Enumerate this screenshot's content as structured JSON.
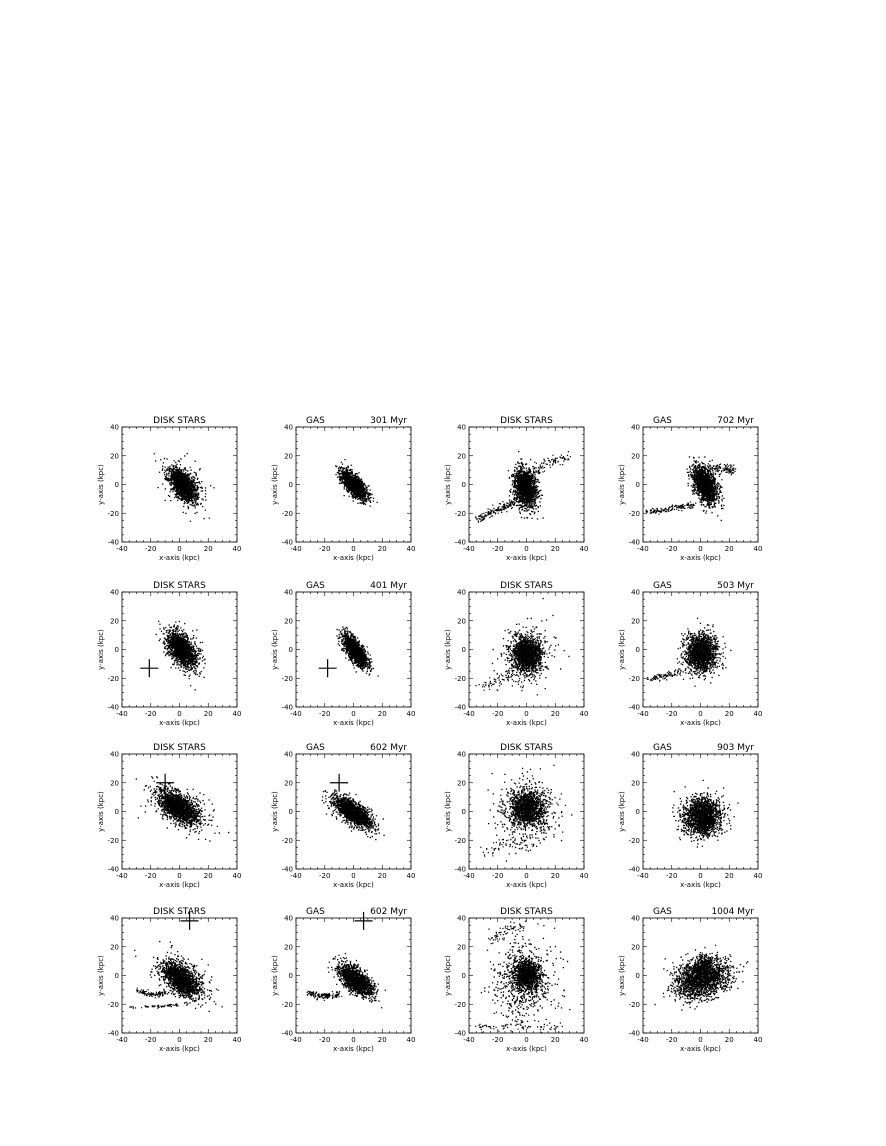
{
  "figure": {
    "background": "#ffffff",
    "ink": "#000000"
  },
  "chart_data": [
    {
      "type": "scatter",
      "xlabel": "x-axis (kpc)",
      "ylabel": "y-axis (kpc)",
      "xlim": [
        -40,
        40
      ],
      "ylim": [
        -40,
        40
      ],
      "xticks": [
        -40,
        -20,
        0,
        20,
        40
      ],
      "yticks": [
        -40,
        -20,
        0,
        20,
        40
      ],
      "title_left": "DISK STARS",
      "title_right": "",
      "blobs": [
        {
          "cx": 2,
          "cy": 0,
          "rx": 7,
          "ry": 14,
          "rot": 35,
          "n": 1500,
          "s": 0.45
        },
        {
          "cx": 3,
          "cy": 1,
          "rx": 13,
          "ry": 22,
          "rot": 35,
          "n": 280,
          "s": 0.45
        }
      ],
      "streams": [],
      "cross": null
    },
    {
      "type": "scatter",
      "xlabel": "x-axis (kpc)",
      "ylabel": "y-axis (kpc)",
      "xlim": [
        -40,
        40
      ],
      "ylim": [
        -40,
        40
      ],
      "xticks": [
        -40,
        -20,
        0,
        20,
        40
      ],
      "yticks": [
        -40,
        -20,
        0,
        20,
        40
      ],
      "title_left": "GAS",
      "title_right": "301 Myr",
      "blobs": [
        {
          "cx": 0,
          "cy": 0,
          "rx": 6,
          "ry": 14,
          "rot": 40,
          "n": 1700,
          "s": 0.42
        }
      ],
      "streams": [],
      "cross": null
    },
    {
      "type": "scatter",
      "xlabel": "x-axis (kpc)",
      "ylabel": "y-axis (kpc)",
      "xlim": [
        -40,
        40
      ],
      "ylim": [
        -40,
        40
      ],
      "xticks": [
        -40,
        -20,
        0,
        20,
        40
      ],
      "yticks": [
        -40,
        -20,
        0,
        20,
        40
      ],
      "title_left": "DISK STARS",
      "title_right": "",
      "blobs": [
        {
          "cx": -1,
          "cy": -2,
          "rx": 9,
          "ry": 15,
          "rot": 10,
          "n": 1500,
          "s": 0.45
        }
      ],
      "streams": [
        {
          "pts": [
            [
              -35,
              -24
            ],
            [
              -20,
              -17
            ],
            [
              -8,
              -12
            ]
          ],
          "n": 160,
          "w": 3
        },
        {
          "pts": [
            [
              3,
              8
            ],
            [
              15,
              16
            ],
            [
              28,
              20
            ]
          ],
          "n": 90,
          "w": 4
        }
      ],
      "cross": null
    },
    {
      "type": "scatter",
      "xlabel": "x-axis (kpc)",
      "ylabel": "y-axis (kpc)",
      "xlim": [
        -40,
        40
      ],
      "ylim": [
        -40,
        40
      ],
      "xticks": [
        -40,
        -20,
        0,
        20,
        40
      ],
      "yticks": [
        -40,
        -20,
        0,
        20,
        40
      ],
      "title_left": "GAS",
      "title_right": "702 Myr",
      "blobs": [
        {
          "cx": 3,
          "cy": 0,
          "rx": 8,
          "ry": 15,
          "rot": 25,
          "n": 1500,
          "s": 0.45
        }
      ],
      "streams": [
        {
          "pts": [
            [
              -38,
              -19
            ],
            [
              -20,
              -16
            ],
            [
              -5,
              -14
            ]
          ],
          "n": 140,
          "w": 2
        },
        {
          "pts": [
            [
              5,
              12
            ],
            [
              16,
              12
            ],
            [
              22,
              10
            ]
          ],
          "n": 120,
          "w": 3
        }
      ],
      "cross": null
    },
    {
      "type": "scatter",
      "xlabel": "x-axis (kpc)",
      "ylabel": "y-axis (kpc)",
      "xlim": [
        -40,
        40
      ],
      "ylim": [
        -40,
        40
      ],
      "xticks": [
        -40,
        -20,
        0,
        20,
        40
      ],
      "yticks": [
        -40,
        -20,
        0,
        20,
        40
      ],
      "title_left": "DISK STARS",
      "title_right": "",
      "blobs": [
        {
          "cx": 1,
          "cy": 0,
          "rx": 8,
          "ry": 14,
          "rot": 35,
          "n": 1500,
          "s": 0.45
        },
        {
          "cx": 2,
          "cy": 1,
          "rx": 13,
          "ry": 21,
          "rot": 35,
          "n": 280,
          "s": 0.45
        }
      ],
      "streams": [],
      "cross": {
        "x": -21,
        "y": -13
      }
    },
    {
      "type": "scatter",
      "xlabel": "x-axis (kpc)",
      "ylabel": "y-axis (kpc)",
      "xlim": [
        -40,
        40
      ],
      "ylim": [
        -40,
        40
      ],
      "xticks": [
        -40,
        -20,
        0,
        20,
        40
      ],
      "yticks": [
        -40,
        -20,
        0,
        20,
        40
      ],
      "title_left": "GAS",
      "title_right": "401 Myr",
      "blobs": [
        {
          "cx": 1,
          "cy": -1,
          "rx": 6,
          "ry": 15,
          "rot": 35,
          "n": 1700,
          "s": 0.42
        }
      ],
      "streams": [],
      "cross": {
        "x": -18,
        "y": -13
      }
    },
    {
      "type": "scatter",
      "xlabel": "x-axis (kpc)",
      "ylabel": "y-axis (kpc)",
      "xlim": [
        -40,
        40
      ],
      "ylim": [
        -40,
        40
      ],
      "xticks": [
        -40,
        -20,
        0,
        20,
        40
      ],
      "yticks": [
        -40,
        -20,
        0,
        20,
        40
      ],
      "title_left": "DISK STARS",
      "title_right": "",
      "blobs": [
        {
          "cx": 0,
          "cy": -3,
          "rx": 11,
          "ry": 14,
          "rot": 0,
          "n": 1300,
          "s": 0.45
        },
        {
          "cx": 0,
          "cy": -3,
          "rx": 18,
          "ry": 20,
          "rot": 0,
          "n": 380,
          "s": 0.45
        }
      ],
      "streams": [
        {
          "pts": [
            [
              -32,
              -25
            ],
            [
              -20,
              -22
            ],
            [
              -10,
              -18
            ]
          ],
          "n": 70,
          "w": 5
        }
      ],
      "cross": null
    },
    {
      "type": "scatter",
      "xlabel": "x-axis (kpc)",
      "ylabel": "y-axis (kpc)",
      "xlim": [
        -40,
        40
      ],
      "ylim": [
        -40,
        40
      ],
      "xticks": [
        -40,
        -20,
        0,
        20,
        40
      ],
      "yticks": [
        -40,
        -20,
        0,
        20,
        40
      ],
      "title_left": "GAS",
      "title_right": "503 Myr",
      "blobs": [
        {
          "cx": 0,
          "cy": -2,
          "rx": 12,
          "ry": 15,
          "rot": 0,
          "n": 1600,
          "s": 0.45
        }
      ],
      "streams": [
        {
          "pts": [
            [
              -37,
              -20
            ],
            [
              -25,
              -18
            ],
            [
              -14,
              -15
            ]
          ],
          "n": 90,
          "w": 2
        }
      ],
      "cross": null
    },
    {
      "type": "scatter",
      "xlabel": "x-axis (kpc)",
      "ylabel": "y-axis (kpc)",
      "xlim": [
        -40,
        40
      ],
      "ylim": [
        -40,
        40
      ],
      "xticks": [
        -40,
        -20,
        0,
        20,
        40
      ],
      "yticks": [
        -40,
        -20,
        0,
        20,
        40
      ],
      "title_left": "DISK STARS",
      "title_right": "",
      "blobs": [
        {
          "cx": -1,
          "cy": 3,
          "rx": 9,
          "ry": 19,
          "rot": 55,
          "n": 1500,
          "s": 0.45
        },
        {
          "cx": 0,
          "cy": 3,
          "rx": 14,
          "ry": 25,
          "rot": 55,
          "n": 300,
          "s": 0.45
        }
      ],
      "streams": [],
      "cross": {
        "x": -10,
        "y": 20
      }
    },
    {
      "type": "scatter",
      "xlabel": "x-axis (kpc)",
      "ylabel": "y-axis (kpc)",
      "xlim": [
        -40,
        40
      ],
      "ylim": [
        -40,
        40
      ],
      "xticks": [
        -40,
        -20,
        0,
        20,
        40
      ],
      "yticks": [
        -40,
        -20,
        0,
        20,
        40
      ],
      "title_left": "GAS",
      "title_right": "602 Myr",
      "blobs": [
        {
          "cx": -1,
          "cy": 0,
          "rx": 8,
          "ry": 19,
          "rot": 55,
          "n": 1700,
          "s": 0.42
        }
      ],
      "streams": [],
      "cross": {
        "x": -10,
        "y": 20
      }
    },
    {
      "type": "scatter",
      "xlabel": "x-axis (kpc)",
      "ylabel": "y-axis (kpc)",
      "xlim": [
        -40,
        40
      ],
      "ylim": [
        -40,
        40
      ],
      "xticks": [
        -40,
        -20,
        0,
        20,
        40
      ],
      "yticks": [
        -40,
        -20,
        0,
        20,
        40
      ],
      "title_left": "DISK STARS",
      "title_right": "",
      "blobs": [
        {
          "cx": 0,
          "cy": 3,
          "rx": 12,
          "ry": 13,
          "rot": 0,
          "n": 1200,
          "s": 0.45
        },
        {
          "cx": 0,
          "cy": 0,
          "rx": 20,
          "ry": 22,
          "rot": 0,
          "n": 520,
          "s": 0.5
        }
      ],
      "streams": [
        {
          "pts": [
            [
              -30,
              -28
            ],
            [
              -15,
              -22
            ],
            [
              0,
              -20
            ]
          ],
          "n": 60,
          "w": 6
        }
      ],
      "cross": null
    },
    {
      "type": "scatter",
      "xlabel": "x-axis (kpc)",
      "ylabel": "y-axis (kpc)",
      "xlim": [
        -40,
        40
      ],
      "ylim": [
        -40,
        40
      ],
      "xticks": [
        -40,
        -20,
        0,
        20,
        40
      ],
      "yticks": [
        -40,
        -20,
        0,
        20,
        40
      ],
      "title_left": "GAS",
      "title_right": "903 Myr",
      "blobs": [
        {
          "cx": 1,
          "cy": -3,
          "rx": 14,
          "ry": 14,
          "rot": 10,
          "n": 1600,
          "s": 0.45
        },
        {
          "cx": 1,
          "cy": -3,
          "rx": 20,
          "ry": 18,
          "rot": 10,
          "n": 200,
          "s": 0.45
        }
      ],
      "streams": [],
      "cross": null
    },
    {
      "type": "scatter",
      "xlabel": "x-axis (kpc)",
      "ylabel": "y-axis (kpc)",
      "xlim": [
        -40,
        40
      ],
      "ylim": [
        -40,
        40
      ],
      "xticks": [
        -40,
        -20,
        0,
        20,
        40
      ],
      "yticks": [
        -40,
        -20,
        0,
        20,
        40
      ],
      "title_left": "DISK STARS",
      "title_right": "",
      "blobs": [
        {
          "cx": 1,
          "cy": -3,
          "rx": 9,
          "ry": 17,
          "rot": 50,
          "n": 1400,
          "s": 0.45
        },
        {
          "cx": 2,
          "cy": 0,
          "rx": 14,
          "ry": 24,
          "rot": 50,
          "n": 260,
          "s": 0.45
        }
      ],
      "streams": [
        {
          "pts": [
            [
              -30,
              -10
            ],
            [
              -20,
              -13
            ],
            [
              -10,
              -12
            ]
          ],
          "n": 100,
          "w": 2
        },
        {
          "pts": [
            [
              -35,
              -22
            ],
            [
              -15,
              -21
            ],
            [
              0,
              -20
            ]
          ],
          "n": 60,
          "w": 1
        }
      ],
      "cross": {
        "x": 7,
        "y": 38
      }
    },
    {
      "type": "scatter",
      "xlabel": "x-axis (kpc)",
      "ylabel": "y-axis (kpc)",
      "xlim": [
        -40,
        40
      ],
      "ylim": [
        -40,
        40
      ],
      "xticks": [
        -40,
        -20,
        0,
        20,
        40
      ],
      "yticks": [
        -40,
        -20,
        0,
        20,
        40
      ],
      "title_left": "GAS",
      "title_right": "602 Myr",
      "blobs": [
        {
          "cx": 1,
          "cy": -3,
          "rx": 8,
          "ry": 17,
          "rot": 50,
          "n": 1600,
          "s": 0.42
        }
      ],
      "streams": [
        {
          "pts": [
            [
              -32,
              -12
            ],
            [
              -22,
              -14
            ],
            [
              -10,
              -13
            ]
          ],
          "n": 140,
          "w": 2
        }
      ],
      "cross": {
        "x": 7,
        "y": 38
      }
    },
    {
      "type": "scatter",
      "xlabel": "x-axis (kpc)",
      "ylabel": "y-axis (kpc)",
      "xlim": [
        -40,
        40
      ],
      "ylim": [
        -40,
        40
      ],
      "xticks": [
        -40,
        -20,
        0,
        20,
        40
      ],
      "yticks": [
        -40,
        -20,
        0,
        20,
        40
      ],
      "title_left": "DISK STARS",
      "title_right": "",
      "blobs": [
        {
          "cx": 0,
          "cy": 1,
          "rx": 10,
          "ry": 11,
          "rot": 10,
          "n": 1000,
          "s": 0.45
        },
        {
          "cx": -2,
          "cy": -3,
          "rx": 20,
          "ry": 24,
          "rot": 10,
          "n": 650,
          "s": 0.55
        }
      ],
      "streams": [
        {
          "pts": [
            [
              -25,
              25
            ],
            [
              -15,
              32
            ],
            [
              0,
              35
            ]
          ],
          "n": 60,
          "w": 4
        },
        {
          "pts": [
            [
              -35,
              -35
            ],
            [
              -10,
              -36
            ],
            [
              25,
              -35
            ]
          ],
          "n": 70,
          "w": 3
        }
      ],
      "cross": null
    },
    {
      "type": "scatter",
      "xlabel": "x-axis (kpc)",
      "ylabel": "y-axis (kpc)",
      "xlim": [
        -40,
        40
      ],
      "ylim": [
        -40,
        40
      ],
      "xticks": [
        -40,
        -20,
        0,
        20,
        40
      ],
      "yticks": [
        -40,
        -20,
        0,
        20,
        40
      ],
      "title_left": "GAS",
      "title_right": "1004 Myr",
      "blobs": [
        {
          "cx": 0,
          "cy": -2,
          "rx": 22,
          "ry": 14,
          "rot": 15,
          "n": 1800,
          "s": 0.45
        },
        {
          "cx": 2,
          "cy": 8,
          "rx": 6,
          "ry": 8,
          "rot": 0,
          "n": 250,
          "s": 0.45
        }
      ],
      "streams": [],
      "cross": null
    }
  ]
}
